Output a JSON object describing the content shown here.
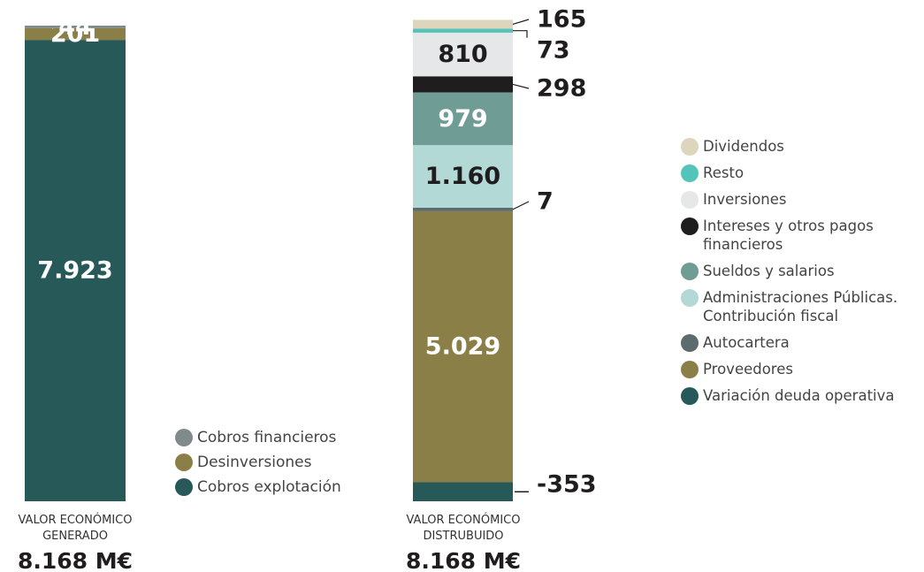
{
  "chart_data": [
    {
      "type": "bar",
      "stacked": true,
      "caption": "VALOR ECONÓMICO GENERADO",
      "total_label": "8.168 M€",
      "series": [
        {
          "name": "Cobros explotación",
          "value": 7923,
          "label": "7.923",
          "color": "#275958"
        },
        {
          "name": "Desinversiones",
          "value": 201,
          "label": "201",
          "color": "#8b7f48"
        },
        {
          "name": "Cobros financieros",
          "value": 44,
          "label": "44",
          "color": "#7f8b8a"
        }
      ],
      "legend_order": [
        "Cobros financieros",
        "Desinversiones",
        "Cobros explotación"
      ]
    },
    {
      "type": "bar",
      "stacked": true,
      "caption": "VALOR ECONÓMICO DISTRUBUIDO",
      "total_label": "8.168 M€",
      "series": [
        {
          "name": "Variación deuda operativa",
          "value": -353,
          "label": "-353",
          "color": "#275958"
        },
        {
          "name": "Proveedores",
          "value": 5029,
          "label": "5.029",
          "color": "#8b7f48"
        },
        {
          "name": "Autocartera",
          "value": 7,
          "label": "7",
          "color": "#5c6b6e"
        },
        {
          "name": "Administraciones Públicas. Contribución fiscal",
          "value": 1160,
          "label": "1.160",
          "color": "#b3d9d7"
        },
        {
          "name": "Sueldos y salarios",
          "value": 979,
          "label": "979",
          "color": "#6f9c94"
        },
        {
          "name": "Intereses y otros pagos financieros",
          "value": 298,
          "label": "298",
          "color": "#1f1d1e"
        },
        {
          "name": "Inversiones",
          "value": 810,
          "label": "810",
          "color": "#e6e7e9"
        },
        {
          "name": "Resto",
          "value": 73,
          "label": "73",
          "color": "#52c4b9"
        },
        {
          "name": "Dividendos",
          "value": 165,
          "label": "165",
          "color": "#ddd6bc"
        }
      ],
      "legend_order": [
        "Dividendos",
        "Resto",
        "Inversiones",
        "Intereses y otros pagos financieros",
        "Sueldos y salarios",
        "Administraciones Públicas. Contribución fiscal",
        "Autocartera",
        "Proveedores",
        "Variación deuda operativa"
      ]
    }
  ]
}
